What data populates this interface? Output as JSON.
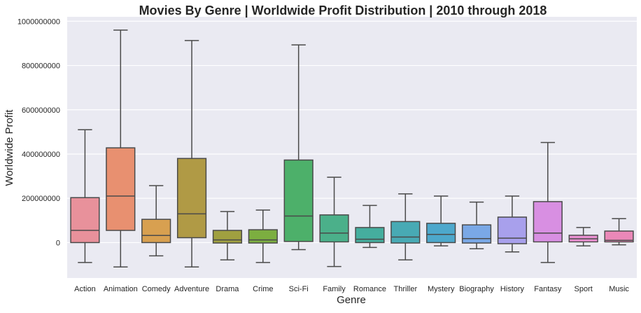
{
  "chart_data": {
    "type": "box",
    "title": "Movies By Genre | Worldwide Profit Distribution | 2010 through 2018",
    "xlabel": "Genre",
    "ylabel": "Worldwide Profit",
    "ylim": [
      -160000000,
      1020000000
    ],
    "yticks": [
      0,
      200000000,
      400000000,
      600000000,
      800000000,
      1000000000
    ],
    "ytick_labels": [
      "0",
      "200000000",
      "400000000",
      "600000000",
      "800000000",
      "1000000000"
    ],
    "grid": true,
    "categories": [
      "Action",
      "Animation",
      "Comedy",
      "Adventure",
      "Drama",
      "Crime",
      "Sci-Fi",
      "Family",
      "Romance",
      "Thriller",
      "Mystery",
      "Biography",
      "History",
      "Fantasy",
      "Sport",
      "Music"
    ],
    "boxes": [
      {
        "genre": "Action",
        "color": "#e8919b",
        "whisker_low": -90000000,
        "q1": 0,
        "median": 55000000,
        "q3": 203000000,
        "whisker_high": 510000000
      },
      {
        "genre": "Animation",
        "color": "#e89070",
        "whisker_low": -110000000,
        "q1": 55000000,
        "median": 210000000,
        "q3": 428000000,
        "whisker_high": 960000000
      },
      {
        "genre": "Comedy",
        "color": "#d8a050",
        "whisker_low": -60000000,
        "q1": 0,
        "median": 32000000,
        "q3": 105000000,
        "whisker_high": 257000000
      },
      {
        "genre": "Adventure",
        "color": "#b09a45",
        "whisker_low": -110000000,
        "q1": 22000000,
        "median": 130000000,
        "q3": 380000000,
        "whisker_high": 913000000
      },
      {
        "genre": "Drama",
        "color": "#a0a040",
        "whisker_low": -78000000,
        "q1": -2000000,
        "median": 12000000,
        "q3": 55000000,
        "whisker_high": 140000000
      },
      {
        "genre": "Crime",
        "color": "#7cae40",
        "whisker_low": -90000000,
        "q1": -2000000,
        "median": 12000000,
        "q3": 58000000,
        "whisker_high": 147000000
      },
      {
        "genre": "Sci-Fi",
        "color": "#4db06a",
        "whisker_low": -32000000,
        "q1": 5000000,
        "median": 120000000,
        "q3": 373000000,
        "whisker_high": 893000000
      },
      {
        "genre": "Family",
        "color": "#4bb08a",
        "whisker_low": -108000000,
        "q1": 3000000,
        "median": 43000000,
        "q3": 125000000,
        "whisker_high": 295000000
      },
      {
        "genre": "Romance",
        "color": "#45ae9e",
        "whisker_low": -22000000,
        "q1": 0,
        "median": 15000000,
        "q3": 68000000,
        "whisker_high": 168000000
      },
      {
        "genre": "Thriller",
        "color": "#48aab4",
        "whisker_low": -78000000,
        "q1": -2000000,
        "median": 25000000,
        "q3": 95000000,
        "whisker_high": 220000000
      },
      {
        "genre": "Mystery",
        "color": "#4da8cc",
        "whisker_low": -15000000,
        "q1": 0,
        "median": 37000000,
        "q3": 87000000,
        "whisker_high": 210000000
      },
      {
        "genre": "Biography",
        "color": "#7aa8e6",
        "whisker_low": -28000000,
        "q1": -2000000,
        "median": 18000000,
        "q3": 80000000,
        "whisker_high": 183000000
      },
      {
        "genre": "History",
        "color": "#a8a0ec",
        "whisker_low": -42000000,
        "q1": -5000000,
        "median": 20000000,
        "q3": 115000000,
        "whisker_high": 210000000
      },
      {
        "genre": "Fantasy",
        "color": "#d88fe2",
        "whisker_low": -90000000,
        "q1": 3000000,
        "median": 43000000,
        "q3": 185000000,
        "whisker_high": 452000000
      },
      {
        "genre": "Sport",
        "color": "#e890d0",
        "whisker_low": -15000000,
        "q1": 3000000,
        "median": 17000000,
        "q3": 33000000,
        "whisker_high": 68000000
      },
      {
        "genre": "Music",
        "color": "#ea88b8",
        "whisker_low": -10000000,
        "q1": 3000000,
        "median": 10000000,
        "q3": 52000000,
        "whisker_high": 108000000
      }
    ]
  }
}
